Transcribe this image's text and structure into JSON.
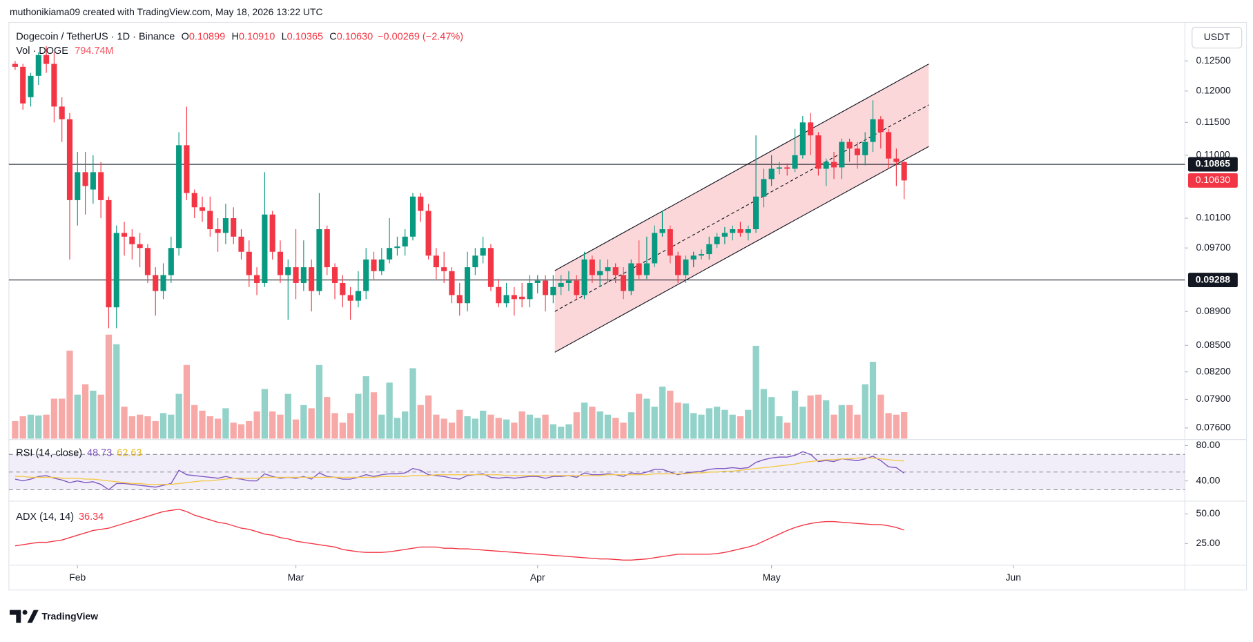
{
  "header": "muthonikiama09 created with TradingView.com, May 18, 2026 13:22 UTC",
  "logo": "TradingView",
  "chart_data": [
    {
      "type": "candlestick",
      "title": "Dogecoin / TetherUS · 1D · Binance",
      "ohlc": [
        {
          "key": "O",
          "value": "0.10899"
        },
        {
          "key": "H",
          "value": "0.10910"
        },
        {
          "key": "L",
          "value": "0.10365"
        },
        {
          "key": "C",
          "value": "0.10630"
        }
      ],
      "change": "−0.00269 (−2.47%)",
      "currency": "USDT",
      "colors": {
        "up": "#089981",
        "down": "#f23645",
        "up_volume": "#92d2c9",
        "down_volume": "#f7a9a8"
      },
      "open": [
        0.1245,
        0.124,
        0.119,
        0.1225,
        0.126,
        0.1245,
        0.1175,
        0.1155,
        0.1035,
        0.1075,
        0.105,
        0.1075,
        0.1035,
        0.0895,
        0.099,
        0.0985,
        0.0975,
        0.097,
        0.0935,
        0.0915,
        0.0935,
        0.097,
        0.1115,
        0.1045,
        0.1025,
        0.102,
        0.0995,
        0.099,
        0.101,
        0.0985,
        0.0965,
        0.0935,
        0.0925,
        0.1015,
        0.0965,
        0.0935,
        0.0945,
        0.0925,
        0.0945,
        0.0915,
        0.0995,
        0.0945,
        0.0925,
        0.091,
        0.0903,
        0.0915,
        0.0955,
        0.094,
        0.0955,
        0.097,
        0.0972,
        0.0985,
        0.104,
        0.102,
        0.096,
        0.0945,
        0.094,
        0.091,
        0.09,
        0.0945,
        0.096,
        0.097,
        0.092,
        0.09,
        0.091,
        0.0908,
        0.0905,
        0.0925,
        0.0928,
        0.091,
        0.092,
        0.0925,
        0.0928,
        0.091,
        0.0955,
        0.0935,
        0.094,
        0.0945,
        0.0935,
        0.0915,
        0.095,
        0.0935,
        0.095,
        0.099,
        0.0995,
        0.096,
        0.0935,
        0.0955,
        0.096,
        0.0962,
        0.0975,
        0.0985,
        0.099,
        0.0995,
        0.099,
        0.0995,
        0.104,
        0.1065,
        0.108,
        0.1082,
        0.108,
        0.11,
        0.115,
        0.113,
        0.108,
        0.109,
        0.1082,
        0.112,
        0.111,
        0.11,
        0.112,
        0.1155,
        0.1135,
        0.1095,
        0.10899
      ],
      "high": [
        0.125,
        0.1245,
        0.123,
        0.1265,
        0.1275,
        0.1265,
        0.119,
        0.1165,
        0.1105,
        0.1105,
        0.11,
        0.109,
        0.104,
        0.1,
        0.1005,
        0.0995,
        0.099,
        0.0975,
        0.0945,
        0.095,
        0.0985,
        0.1135,
        0.1175,
        0.105,
        0.104,
        0.104,
        0.101,
        0.103,
        0.1025,
        0.0995,
        0.098,
        0.0945,
        0.1075,
        0.102,
        0.098,
        0.0955,
        0.0995,
        0.098,
        0.0955,
        0.1045,
        0.1,
        0.095,
        0.0935,
        0.092,
        0.094,
        0.097,
        0.0965,
        0.097,
        0.101,
        0.0985,
        0.0995,
        0.1045,
        0.1045,
        0.103,
        0.097,
        0.0965,
        0.0945,
        0.0925,
        0.0965,
        0.097,
        0.0985,
        0.0975,
        0.093,
        0.0925,
        0.092,
        0.0925,
        0.0935,
        0.0935,
        0.0935,
        0.0935,
        0.0935,
        0.094,
        0.0935,
        0.0965,
        0.096,
        0.0955,
        0.0955,
        0.095,
        0.0945,
        0.0955,
        0.098,
        0.0985,
        0.1,
        0.102,
        0.1,
        0.0965,
        0.096,
        0.0965,
        0.0968,
        0.0985,
        0.099,
        0.0998,
        0.1,
        0.1005,
        0.1,
        0.113,
        0.108,
        0.11,
        0.109,
        0.1088,
        0.114,
        0.116,
        0.1165,
        0.1135,
        0.1095,
        0.1105,
        0.1125,
        0.1125,
        0.112,
        0.1135,
        0.1185,
        0.116,
        0.114,
        0.111,
        0.1091
      ],
      "low": [
        0.1235,
        0.117,
        0.1175,
        0.121,
        0.123,
        0.115,
        0.112,
        0.0955,
        0.1,
        0.1015,
        0.103,
        0.101,
        0.087,
        0.087,
        0.096,
        0.0955,
        0.0945,
        0.0925,
        0.0885,
        0.0905,
        0.0925,
        0.096,
        0.1035,
        0.101,
        0.1005,
        0.0985,
        0.0965,
        0.0975,
        0.0975,
        0.0955,
        0.092,
        0.091,
        0.092,
        0.0955,
        0.0925,
        0.088,
        0.0905,
        0.0915,
        0.089,
        0.091,
        0.0935,
        0.0905,
        0.0895,
        0.088,
        0.0895,
        0.0905,
        0.093,
        0.0935,
        0.095,
        0.096,
        0.096,
        0.098,
        0.1005,
        0.0955,
        0.093,
        0.0925,
        0.09,
        0.0885,
        0.089,
        0.0935,
        0.095,
        0.0915,
        0.0895,
        0.0895,
        0.0885,
        0.0895,
        0.0895,
        0.0912,
        0.089,
        0.09,
        0.091,
        0.0915,
        0.0905,
        0.0905,
        0.0925,
        0.092,
        0.0925,
        0.0925,
        0.0905,
        0.091,
        0.093,
        0.093,
        0.0945,
        0.0985,
        0.095,
        0.0925,
        0.0925,
        0.0945,
        0.0955,
        0.0955,
        0.097,
        0.0975,
        0.098,
        0.0985,
        0.098,
        0.099,
        0.1025,
        0.1055,
        0.1072,
        0.107,
        0.1075,
        0.1095,
        0.11,
        0.107,
        0.1055,
        0.1065,
        0.1065,
        0.109,
        0.108,
        0.1085,
        0.1105,
        0.111,
        0.108,
        0.1055,
        0.10365
      ],
      "close": [
        0.124,
        0.118,
        0.1225,
        0.126,
        0.1245,
        0.1175,
        0.1155,
        0.1035,
        0.1075,
        0.1055,
        0.1075,
        0.1035,
        0.0895,
        0.099,
        0.0985,
        0.0975,
        0.097,
        0.0935,
        0.0915,
        0.0935,
        0.097,
        0.1115,
        0.1045,
        0.1025,
        0.102,
        0.0995,
        0.099,
        0.101,
        0.0985,
        0.0965,
        0.0935,
        0.0925,
        0.1015,
        0.0965,
        0.0935,
        0.0945,
        0.0925,
        0.0945,
        0.0915,
        0.0995,
        0.0945,
        0.0925,
        0.091,
        0.0903,
        0.0915,
        0.0955,
        0.094,
        0.0955,
        0.097,
        0.0972,
        0.0985,
        0.104,
        0.102,
        0.096,
        0.0945,
        0.094,
        0.091,
        0.09,
        0.0945,
        0.096,
        0.097,
        0.092,
        0.09,
        0.091,
        0.0905,
        0.0905,
        0.0925,
        0.0928,
        0.091,
        0.092,
        0.0925,
        0.0928,
        0.091,
        0.0955,
        0.0935,
        0.094,
        0.0945,
        0.0935,
        0.0915,
        0.095,
        0.0935,
        0.095,
        0.099,
        0.0995,
        0.096,
        0.0935,
        0.0955,
        0.096,
        0.0962,
        0.0975,
        0.0985,
        0.099,
        0.0995,
        0.099,
        0.0995,
        0.104,
        0.1065,
        0.108,
        0.1082,
        0.108,
        0.11,
        0.115,
        0.113,
        0.108,
        0.109,
        0.1082,
        0.112,
        0.111,
        0.11,
        0.112,
        0.1155,
        0.1135,
        0.1095,
        0.109,
        0.1063
      ],
      "volume": {
        "name": "Vol · DOGE",
        "last_label": "794.74M",
        "values": [
          528,
          672,
          720,
          696,
          720,
          1200,
          1200,
          2640,
          1320,
          1632,
          1440,
          1320,
          3120,
          2832,
          960,
          672,
          720,
          672,
          528,
          768,
          720,
          1344,
          2208,
          1008,
          840,
          672,
          600,
          912,
          480,
          432,
          528,
          816,
          1488,
          816,
          720,
          1344,
          576,
          1008,
          912,
          2208,
          1248,
          768,
          480,
          768,
          1344,
          1872,
          1392,
          720,
          1680,
          624,
          816,
          2112,
          1008,
          1296,
          720,
          600,
          480,
          864,
          672,
          600,
          840,
          720,
          624,
          576,
          480,
          816,
          720,
          624,
          720,
          432,
          360,
          432,
          792,
          1080,
          960,
          816,
          720,
          624,
          480,
          792,
          1344,
          1200,
          960,
          1560,
          1440,
          1080,
          1056,
          768,
          720,
          912,
          960,
          864,
          720,
          672,
          864,
          2784,
          1488,
          1248,
          672,
          480,
          1440,
          960,
          1296,
          1320,
          1152,
          720,
          1008,
          1008,
          720,
          1632,
          2304,
          1320,
          768,
          720,
          794.74
        ]
      },
      "log": true,
      "ylim": [
        0.0749,
        0.1317
      ],
      "yticks": [
        {
          "value": 0.125,
          "label": "0.12500"
        },
        {
          "value": 0.12,
          "label": "0.12000"
        },
        {
          "value": 0.115,
          "label": "0.11500"
        },
        {
          "value": 0.11,
          "label": "0.11000"
        },
        {
          "value": 0.101,
          "label": "0.10100"
        },
        {
          "value": 0.097,
          "label": "0.09700"
        },
        {
          "value": 0.089,
          "label": "0.08900"
        },
        {
          "value": 0.085,
          "label": "0.08500"
        },
        {
          "value": 0.082,
          "label": "0.08200"
        },
        {
          "value": 0.079,
          "label": "0.07900"
        },
        {
          "value": 0.076,
          "label": "0.07600"
        }
      ],
      "xlim": [
        -0.8,
        150
      ],
      "xticks": [
        {
          "value": 8,
          "label": "Feb"
        },
        {
          "value": 36,
          "label": "Mar"
        },
        {
          "value": 67,
          "label": "Apr"
        },
        {
          "value": 97,
          "label": "May"
        },
        {
          "value": 128,
          "label": "Jun"
        }
      ],
      "price_lines": [
        {
          "value": 0.10865,
          "label": "0.10865"
        },
        {
          "value": 0.09288,
          "label": "0.09288"
        }
      ],
      "last_price": {
        "value": 0.1063,
        "label": "0.10630"
      }
    },
    {
      "type": "line",
      "title": "RSI (14, close)",
      "ylim": [
        18,
        86
      ],
      "yticks": [
        {
          "value": 80,
          "label": "80.00"
        },
        {
          "value": 40,
          "label": "40.00"
        }
      ],
      "bands": [
        70,
        50,
        30
      ],
      "band_color": "#7e57c2",
      "series": [
        {
          "color": "#7e57c2",
          "values": [
            42,
            40,
            42,
            45,
            46,
            43,
            41,
            38,
            40,
            38,
            39,
            36,
            30,
            37,
            37,
            36,
            35,
            34,
            33,
            35,
            37,
            52,
            47,
            46,
            45,
            44,
            43,
            45,
            43,
            42,
            40,
            40,
            48,
            45,
            43,
            44,
            43,
            45,
            42,
            49,
            45,
            44,
            42,
            42,
            44,
            47,
            45,
            47,
            48,
            48,
            49,
            54,
            52,
            47,
            46,
            45,
            43,
            42,
            46,
            47,
            48,
            44,
            43,
            44,
            43,
            44,
            45,
            45,
            43,
            45,
            45,
            46,
            44,
            49,
            47,
            47,
            48,
            47,
            45,
            49,
            48,
            50,
            53,
            53,
            50,
            47,
            49,
            50,
            51,
            53,
            54,
            54,
            55,
            54,
            55,
            61,
            64,
            66,
            67,
            67,
            69,
            73,
            70,
            62,
            63,
            62,
            65,
            64,
            63,
            65,
            68,
            63,
            56,
            55,
            48.73
          ]
        },
        {
          "color": "#f2c94c",
          "values": [
            45,
            45,
            44,
            44,
            44,
            44,
            43,
            43,
            43,
            42,
            42,
            41,
            40,
            39,
            38,
            37,
            37,
            36,
            36,
            36,
            36,
            37,
            38,
            39,
            40,
            40,
            41,
            42,
            43,
            43,
            43,
            43,
            44,
            44,
            44,
            44,
            44,
            44,
            44,
            44,
            44,
            44,
            44,
            44,
            44,
            44,
            44,
            45,
            45,
            45,
            45,
            46,
            46,
            46,
            47,
            47,
            47,
            47,
            47,
            47,
            47,
            47,
            47,
            46,
            46,
            46,
            46,
            46,
            46,
            46,
            46,
            46,
            46,
            46,
            46,
            46,
            47,
            47,
            47,
            47,
            47,
            47,
            48,
            48,
            48,
            48,
            48,
            49,
            49,
            50,
            50,
            51,
            51,
            52,
            53,
            54,
            55,
            56,
            57,
            58,
            59,
            61,
            62,
            63,
            64,
            64,
            65,
            65,
            66,
            66,
            66,
            65,
            64,
            63,
            62.63
          ]
        }
      ]
    },
    {
      "type": "line",
      "title": "ADX (14, 14)",
      "ylim": [
        7.4,
        59.5
      ],
      "yticks": [
        {
          "value": 50,
          "label": "50.00"
        },
        {
          "value": 25,
          "label": "25.00"
        }
      ],
      "series": [
        {
          "color": "#f23645",
          "values": [
            23,
            24,
            25,
            26,
            26,
            27,
            28,
            30,
            32,
            34,
            36,
            37,
            38,
            40,
            42,
            44,
            46,
            48,
            50,
            52,
            53,
            54,
            52,
            49,
            47,
            45,
            43,
            42,
            40,
            38,
            37,
            35,
            33,
            32,
            30,
            29,
            27,
            26,
            25,
            24,
            23,
            22,
            20,
            19,
            18,
            17.5,
            17.5,
            17.5,
            18,
            19,
            20,
            21,
            22,
            22,
            22,
            21,
            21,
            20.5,
            20.5,
            20,
            19.5,
            19,
            18.5,
            18,
            17.5,
            17,
            16.5,
            16,
            15.5,
            15,
            14.5,
            14,
            13.5,
            13,
            12.5,
            12,
            12,
            11.5,
            11,
            11,
            11.5,
            12,
            13,
            14,
            15,
            16,
            16,
            16,
            16,
            16,
            16.5,
            17.5,
            19,
            20.5,
            22,
            24,
            27,
            30,
            33,
            36,
            38.5,
            40.5,
            42,
            43,
            43.5,
            43.5,
            43,
            42.5,
            42,
            41.5,
            41,
            41,
            40,
            38.5,
            36.34
          ]
        }
      ]
    }
  ]
}
